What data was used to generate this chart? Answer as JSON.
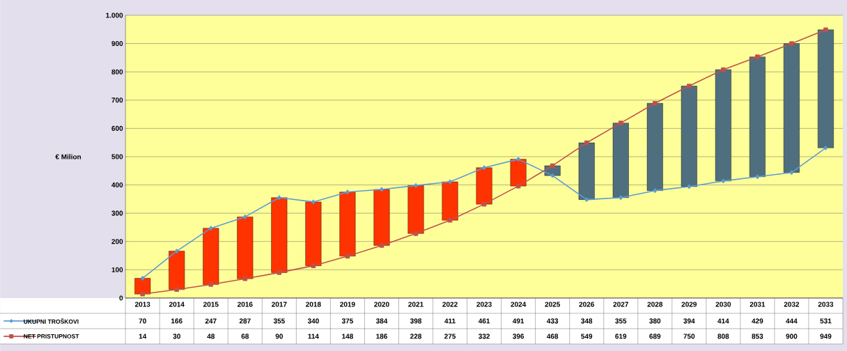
{
  "chart_data": {
    "type": "line",
    "ylabel": "€ Milion",
    "categories": [
      "2013",
      "2014",
      "2015",
      "2016",
      "2017",
      "2018",
      "2019",
      "2020",
      "2021",
      "2022",
      "2023",
      "2024",
      "2025",
      "2026",
      "2027",
      "2028",
      "2029",
      "2030",
      "2031",
      "2032",
      "2033"
    ],
    "ylim": [
      0,
      1000
    ],
    "yticks": [
      0,
      100,
      200,
      300,
      400,
      500,
      600,
      700,
      800,
      900,
      {
        "value": 1000,
        "label": "1.000"
      }
    ],
    "grid": "y",
    "legend": "bottom",
    "series": [
      {
        "type": "bar",
        "base": [
          14,
          30,
          48,
          68,
          90,
          114,
          148,
          186,
          228,
          275,
          332,
          396,
          433,
          348,
          355,
          380,
          394,
          414,
          429,
          444,
          531
        ],
        "values": [
          56,
          136,
          199,
          219,
          265,
          226,
          227,
          198,
          170,
          136,
          129,
          95,
          35,
          201,
          264,
          309,
          356,
          394,
          424,
          456,
          418
        ],
        "colors": [
          "#ff3300",
          "#ff3300",
          "#ff3300",
          "#ff3300",
          "#ff3300",
          "#ff3300",
          "#ff3300",
          "#ff3300",
          "#ff3300",
          "#ff3300",
          "#ff3300",
          "#ff3300",
          "#4f6f7f",
          "#4f6f7f",
          "#4f6f7f",
          "#4f6f7f",
          "#4f6f7f",
          "#4f6f7f",
          "#4f6f7f",
          "#4f6f7f",
          "#4f6f7f"
        ]
      },
      {
        "name": "UKUPNI TROŠKOVI",
        "color": "#5b9bd5",
        "marker": "diamond",
        "values": [
          70,
          166,
          247,
          287,
          355,
          340,
          375,
          384,
          398,
          411,
          461,
          491,
          433,
          348,
          355,
          380,
          394,
          414,
          429,
          444,
          531
        ],
        "value_labels": [
          "70",
          "166",
          "247",
          "287",
          "355",
          "340",
          "375",
          "384",
          "398",
          "411",
          "461",
          "491",
          "433",
          "348",
          "355",
          "380",
          "394",
          "414",
          "429",
          "444",
          "531"
        ]
      },
      {
        "name": "NET PRISTUPNOST",
        "color": "#c0504d",
        "marker": "square",
        "values": [
          14,
          30,
          48,
          68,
          90,
          114,
          148,
          186,
          228,
          275,
          332,
          396,
          468,
          549,
          619,
          689,
          750,
          808,
          853,
          900,
          949
        ],
        "value_labels": [
          "14",
          "30",
          "48",
          "68",
          "90",
          "114",
          "148",
          "186",
          "228",
          "275",
          "332",
          "396",
          "468",
          "549",
          "619",
          "689",
          "750",
          "808",
          "853",
          "900",
          "949"
        ]
      }
    ]
  }
}
